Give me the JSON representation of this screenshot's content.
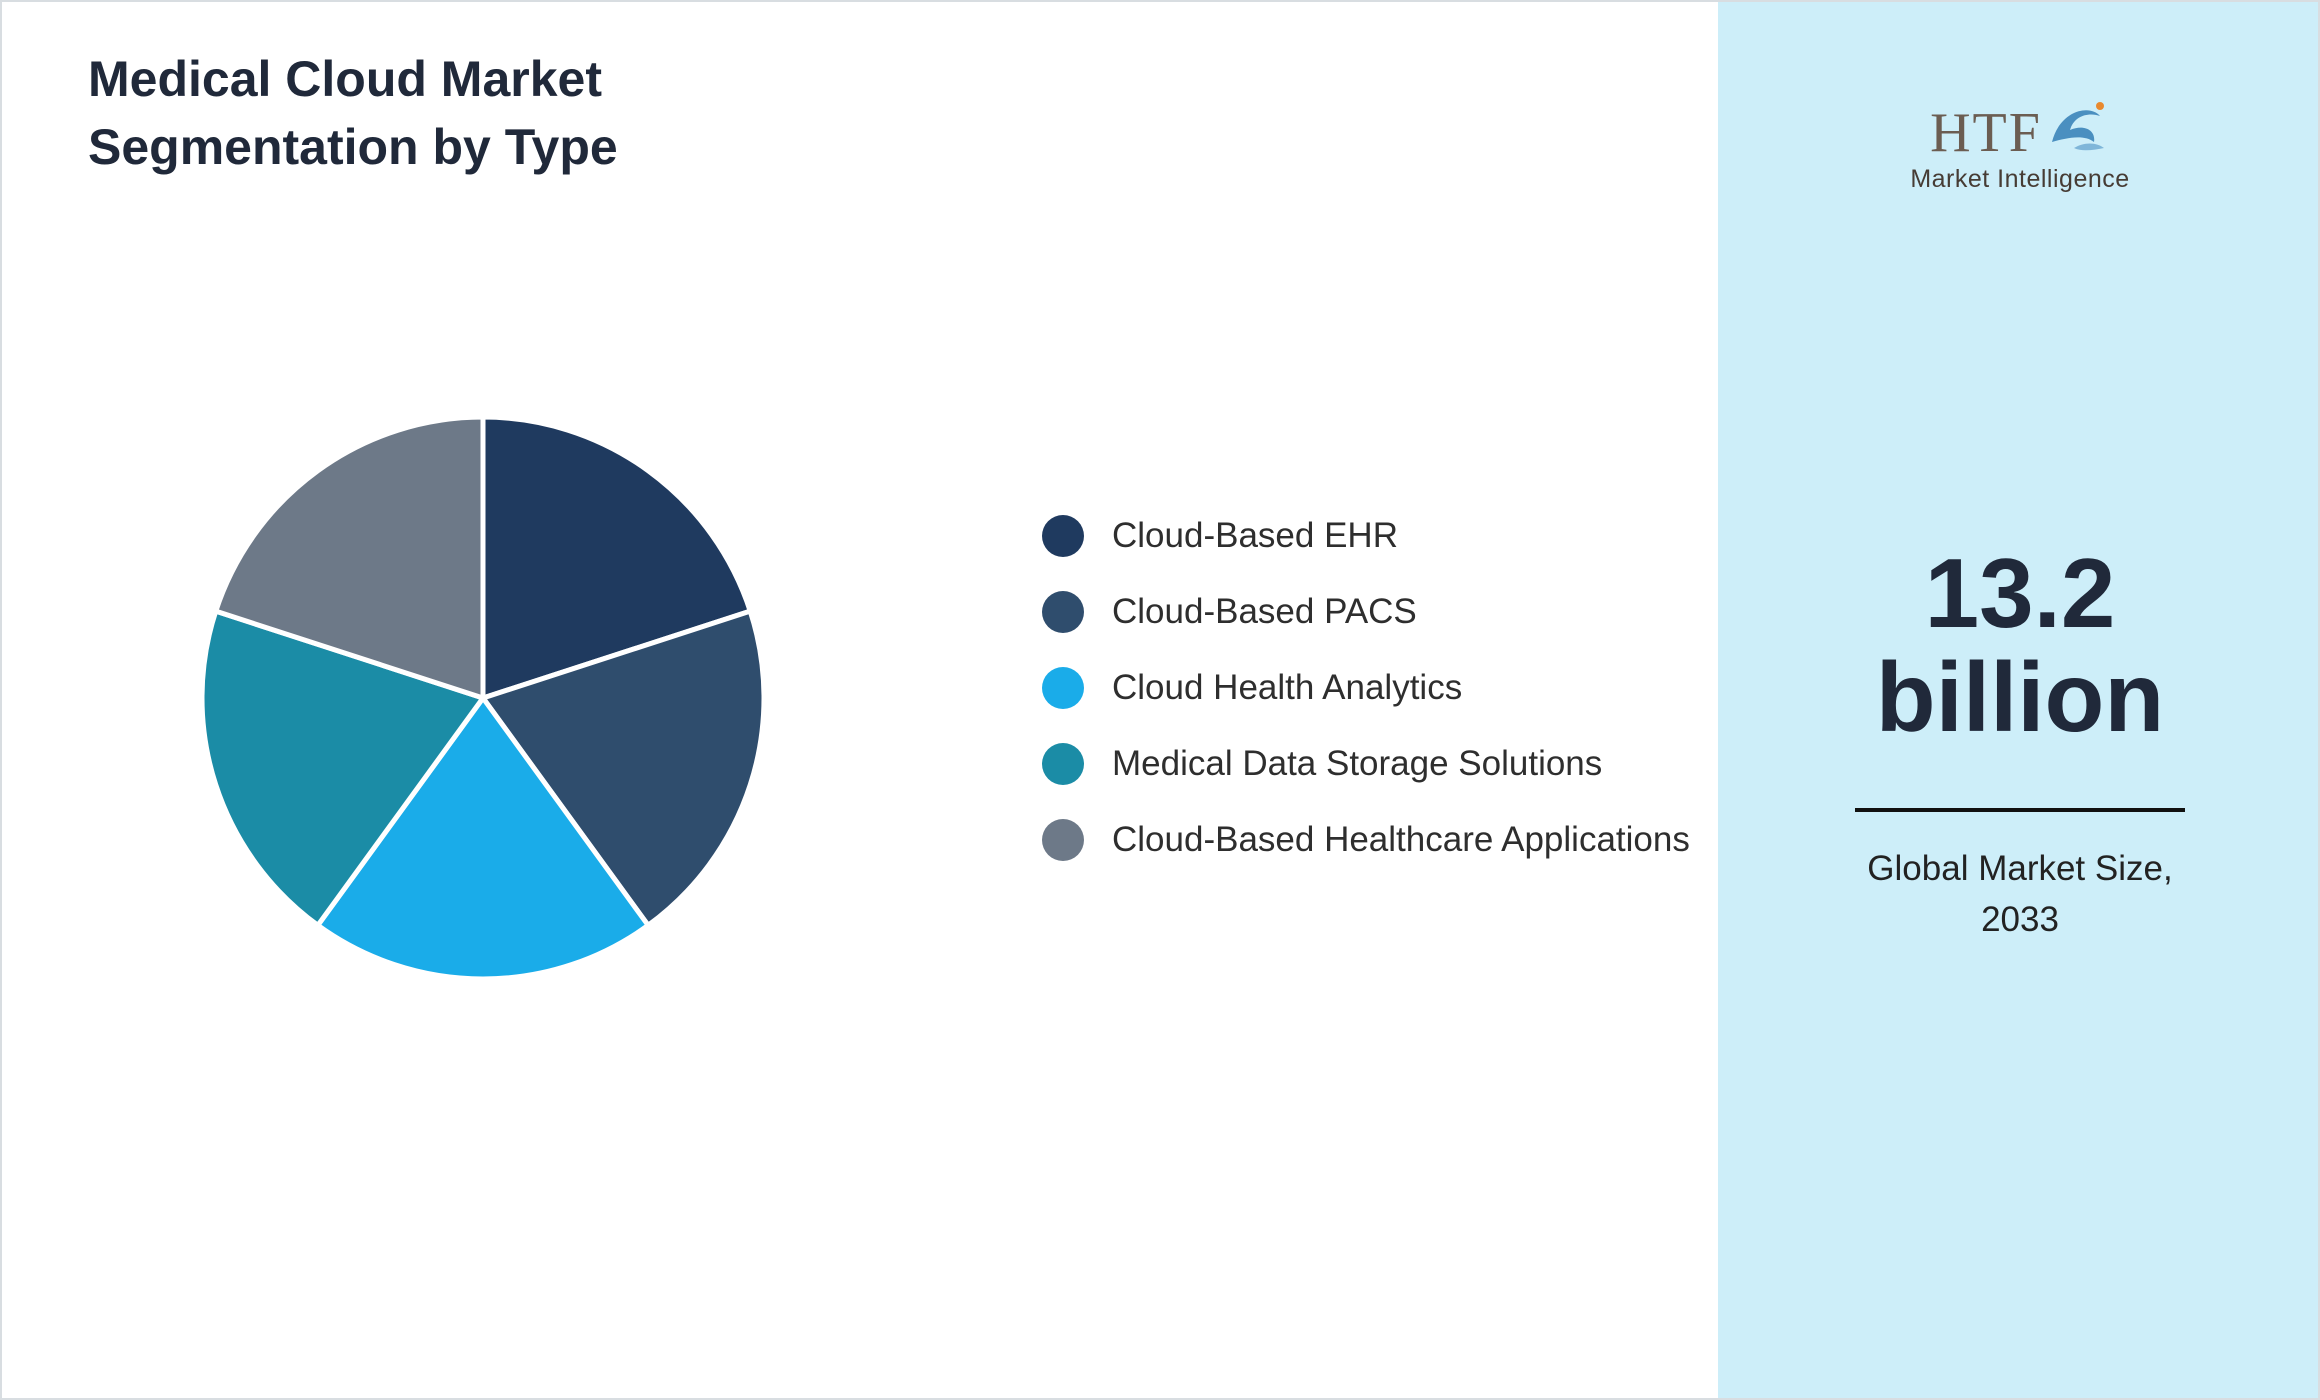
{
  "header": {
    "title_line1": "Medical Cloud Market",
    "title_line2": "Segmentation by Type"
  },
  "chart_data": {
    "type": "pie",
    "title": "Medical Cloud Market Segmentation by Type",
    "labels": [
      "Cloud-Based EHR",
      "Cloud-Based PACS",
      "Cloud Health Analytics",
      "Medical Data Storage Solutions",
      "Cloud-Based Healthcare Applications"
    ],
    "values": [
      20,
      20,
      20,
      20,
      20
    ],
    "colors": [
      "#1f3a5f",
      "#2f4d6d",
      "#1aace9",
      "#1b8ca6",
      "#6d7988"
    ],
    "legend_position": "right",
    "start_angle_deg": -90,
    "direction": "clockwise"
  },
  "sidebar": {
    "bg_color": "#cdeef9",
    "logo": {
      "text": "HTF",
      "subtext": "Market Intelligence",
      "dolphin_icon": "dolphin-splash-icon"
    },
    "stat": {
      "value_line1": "13.2",
      "value_line2": "billion",
      "label_line1": "Global Market Size,",
      "label_line2": "2033"
    }
  }
}
